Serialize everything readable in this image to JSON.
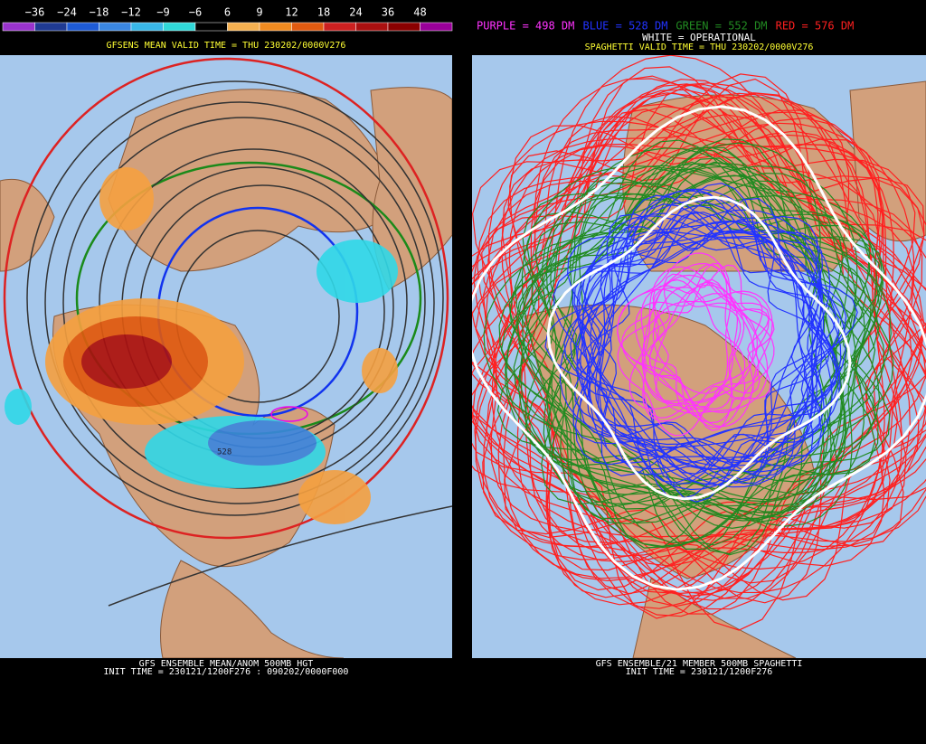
{
  "colorbar": {
    "labels": [
      "−36",
      "−24",
      "−18",
      "−12",
      "−9",
      "−6",
      "6",
      "9",
      "12",
      "18",
      "24",
      "36",
      "48"
    ],
    "colors": [
      "#9933cc",
      "#1f3a93",
      "#1e5bd6",
      "#3a86e0",
      "#39b7e8",
      "#30d8d8",
      "#000000",
      "#f5b050",
      "#f08a20",
      "#e05a10",
      "#cc2020",
      "#aa1010",
      "#8a0000",
      "#990099"
    ]
  },
  "left": {
    "valid_time": "GFSENS MEAN VALID TIME = THU 230202/0000V276",
    "map_label": "528",
    "footer": [
      "GFS ENSEMBLE MEAN/ANOM 500MB HGT",
      "INIT TIME = 230121/1200F276 : 090202/0000F000"
    ]
  },
  "right": {
    "legend": [
      {
        "text": "PURPLE = 498 DM",
        "color": "#ff33ff"
      },
      {
        "text": "BLUE = 528 DM",
        "color": "#2233ff"
      },
      {
        "text": "GREEN = 552 DM",
        "color": "#228b22"
      },
      {
        "text": "RED = 576 DM",
        "color": "#ff2020"
      }
    ],
    "operational": "WHITE = OPERATIONAL",
    "valid_time": "SPAGHETTI VALID TIME = THU 230202/0000V276",
    "footer": [
      "GFS ENSEMBLE/21 MEMBER 500MB SPAGHETTI",
      "INIT TIME = 230121/1200F276"
    ]
  }
}
